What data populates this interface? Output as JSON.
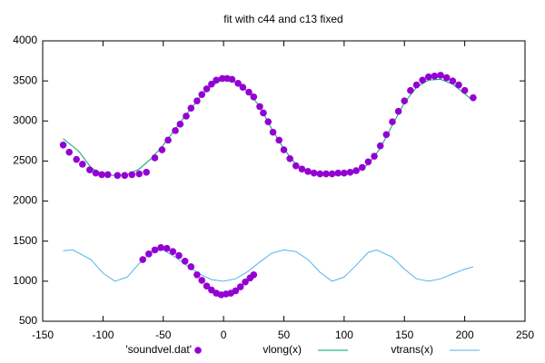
{
  "chart_data": {
    "type": "mixed",
    "title": "fit with c44 and c13 fixed",
    "xlim": [
      -150,
      250
    ],
    "xticks": [
      -150,
      -100,
      -50,
      0,
      50,
      100,
      150,
      200,
      250
    ],
    "ylim": [
      500,
      4000
    ],
    "yticks": [
      500,
      1000,
      1500,
      2000,
      2500,
      3000,
      3500,
      4000
    ],
    "grid": false,
    "legend": "bottom",
    "series": [
      {
        "name": "'soundvel.dat'",
        "style": "points",
        "color": "#9400d3",
        "x": [
          -133,
          -128,
          -122,
          -117,
          -111,
          -106,
          -101,
          -96,
          -88,
          -82,
          -76,
          -70,
          -64,
          -57,
          -51,
          -46,
          -40,
          -36,
          -31,
          -27,
          -22,
          -18,
          -14,
          -10,
          -6,
          -1,
          3,
          7,
          12,
          16,
          21,
          25,
          30,
          33,
          37,
          41,
          46,
          50,
          55,
          60,
          65,
          70,
          75,
          80,
          85,
          90,
          95,
          100,
          105,
          110,
          115,
          120,
          125,
          130,
          135,
          140,
          145,
          150,
          155,
          160,
          165,
          170,
          175,
          180,
          185,
          190,
          195,
          200,
          207,
          -67,
          -62,
          -57,
          -52,
          -47,
          -42,
          -37,
          -32,
          -27,
          -22,
          -18,
          -14,
          -10,
          -6,
          -2,
          2,
          6,
          10,
          14,
          18,
          22,
          25
        ],
        "values": [
          2700,
          2610,
          2520,
          2460,
          2390,
          2350,
          2330,
          2330,
          2320,
          2320,
          2330,
          2340,
          2360,
          2540,
          2640,
          2760,
          2880,
          2960,
          3060,
          3160,
          3250,
          3330,
          3400,
          3460,
          3510,
          3530,
          3530,
          3520,
          3470,
          3420,
          3360,
          3300,
          3180,
          3100,
          2990,
          2860,
          2760,
          2640,
          2530,
          2440,
          2400,
          2370,
          2350,
          2340,
          2340,
          2340,
          2350,
          2350,
          2360,
          2380,
          2420,
          2490,
          2560,
          2690,
          2830,
          2990,
          3120,
          3250,
          3380,
          3450,
          3510,
          3550,
          3560,
          3570,
          3540,
          3500,
          3450,
          3380,
          3290,
          1270,
          1340,
          1390,
          1420,
          1410,
          1370,
          1320,
          1250,
          1180,
          1080,
          1010,
          940,
          890,
          850,
          830,
          840,
          850,
          880,
          930,
          990,
          1040,
          1080
        ]
      },
      {
        "name": "vlong(x)",
        "style": "line",
        "color": "#009e73",
        "x": [
          -133,
          -120,
          -110,
          -100,
          -90,
          -80,
          -70,
          -60,
          -50,
          -40,
          -30,
          -20,
          -10,
          0,
          10,
          20,
          30,
          40,
          50,
          60,
          70,
          80,
          90,
          100,
          110,
          120,
          130,
          140,
          150,
          160,
          170,
          180,
          190,
          200,
          207
        ],
        "values": [
          2780,
          2620,
          2420,
          2330,
          2320,
          2330,
          2400,
          2530,
          2700,
          2900,
          3100,
          3290,
          3440,
          3520,
          3490,
          3370,
          3180,
          2900,
          2650,
          2460,
          2360,
          2330,
          2320,
          2330,
          2360,
          2460,
          2660,
          2950,
          3230,
          3420,
          3510,
          3520,
          3460,
          3340,
          3250
        ]
      },
      {
        "name": "vtrans(x)",
        "style": "line",
        "color": "#56b4e9",
        "x": [
          -133,
          -125,
          -110,
          -100,
          -90,
          -80,
          -70,
          -60,
          -50,
          -40,
          -30,
          -20,
          -10,
          0,
          10,
          20,
          30,
          40,
          50,
          60,
          70,
          80,
          90,
          100,
          110,
          120,
          127,
          140,
          150,
          160,
          170,
          180,
          190,
          200,
          207
        ],
        "values": [
          1380,
          1390,
          1270,
          1100,
          1000,
          1050,
          1220,
          1370,
          1390,
          1300,
          1190,
          1090,
          1020,
          1000,
          1030,
          1120,
          1240,
          1350,
          1390,
          1370,
          1270,
          1110,
          1000,
          1050,
          1200,
          1360,
          1390,
          1300,
          1150,
          1030,
          1000,
          1030,
          1090,
          1150,
          1180
        ]
      }
    ]
  }
}
